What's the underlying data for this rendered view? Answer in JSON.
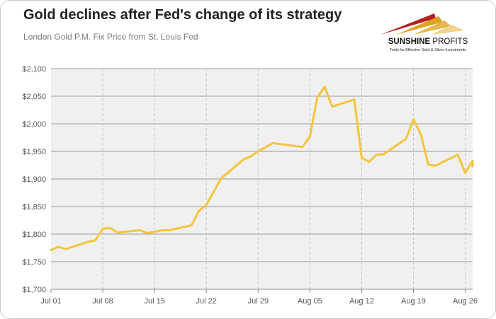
{
  "header": {
    "title": "Gold declines after Fed's change of its strategy",
    "subtitle": "London Gold P.M. Fix Price from St. Louis Fed"
  },
  "logo": {
    "name_bold": "SUNSHINE",
    "name_light": " PROFITS",
    "tagline": "Tools for Effective Gold & Silver Investments",
    "colors": [
      "#b22222",
      "#e0a020",
      "#e7b84a",
      "#f0d28a"
    ]
  },
  "colors": {
    "line": "#f2c53d",
    "plot_background": "#f0f0f0",
    "grid_horizontal": "#9a9a9a",
    "grid_vertical": "#c4c4c4",
    "tick_text": "#555555"
  },
  "chart_data": {
    "type": "line",
    "title": "Gold declines after Fed's change of its strategy",
    "subtitle": "London Gold P.M. Fix Price from St. Louis Fed",
    "xlabel": "",
    "ylabel": "",
    "ylim": [
      1700,
      2100
    ],
    "yticks": [
      "$1,700",
      "$1,750",
      "$1,800",
      "$1,850",
      "$1,900",
      "$1,950",
      "$2,000",
      "$2,050",
      "$2,100"
    ],
    "ytick_values": [
      1700,
      1750,
      1800,
      1850,
      1900,
      1950,
      2000,
      2050,
      2100
    ],
    "xlim": [
      "2020-07-01",
      "2020-08-27"
    ],
    "xticks": [
      {
        "date": "2020-07-01",
        "label": "Jul 01"
      },
      {
        "date": "2020-07-08",
        "label": "Jul 08"
      },
      {
        "date": "2020-07-15",
        "label": "Jul 15"
      },
      {
        "date": "2020-07-22",
        "label": "Jul 22"
      },
      {
        "date": "2020-07-29",
        "label": "Jul 29"
      },
      {
        "date": "2020-08-05",
        "label": "Aug 05"
      },
      {
        "date": "2020-08-12",
        "label": "Aug 12"
      },
      {
        "date": "2020-08-19",
        "label": "Aug 19"
      },
      {
        "date": "2020-08-26",
        "label": "Aug 26"
      }
    ],
    "grid": {
      "horizontal": true,
      "vertical": true,
      "vertical_style": "dashed"
    },
    "series": [
      {
        "points": [
          [
            "2020-07-01",
            1771.0
          ],
          [
            "2020-07-02",
            1777.0
          ],
          [
            "2020-07-03",
            1773.0
          ],
          [
            "2020-07-06",
            1786.0
          ],
          [
            "2020-07-07",
            1789.0
          ],
          [
            "2020-07-08",
            1810.0
          ],
          [
            "2020-07-09",
            1811.0
          ],
          [
            "2020-07-10",
            1803.0
          ],
          [
            "2020-07-13",
            1807.0
          ],
          [
            "2020-07-14",
            1802.0
          ],
          [
            "2020-07-15",
            1804.0
          ],
          [
            "2020-07-16",
            1807.0
          ],
          [
            "2020-07-17",
            1807.0
          ],
          [
            "2020-07-20",
            1816.0
          ],
          [
            "2020-07-21",
            1842.0
          ],
          [
            "2020-07-22",
            1853.0
          ],
          [
            "2020-07-24",
            1901.0
          ],
          [
            "2020-07-27",
            1935.0
          ],
          [
            "2020-07-28",
            1941.0
          ],
          [
            "2020-07-29",
            1950.0
          ],
          [
            "2020-07-31",
            1965.0
          ],
          [
            "2020-08-04",
            1958.0
          ],
          [
            "2020-08-05",
            1977.0
          ],
          [
            "2020-08-06",
            2048.0
          ],
          [
            "2020-08-07",
            2067.0
          ],
          [
            "2020-08-08",
            2031.0
          ],
          [
            "2020-08-11",
            2044.0
          ],
          [
            "2020-08-12",
            1939.0
          ],
          [
            "2020-08-13",
            1931.0
          ],
          [
            "2020-08-14",
            1944.0
          ],
          [
            "2020-08-15",
            1945.0
          ],
          [
            "2020-08-18",
            1973.0
          ],
          [
            "2020-08-19",
            2008.0
          ],
          [
            "2020-08-20",
            1981.0
          ],
          [
            "2020-08-21",
            1926.0
          ],
          [
            "2020-08-22",
            1924.0
          ],
          [
            "2020-08-25",
            1944.0
          ],
          [
            "2020-08-26",
            1911.0
          ],
          [
            "2020-08-27",
            1933.0
          ],
          [
            "2020-08-28",
            1923.0
          ]
        ]
      }
    ]
  }
}
